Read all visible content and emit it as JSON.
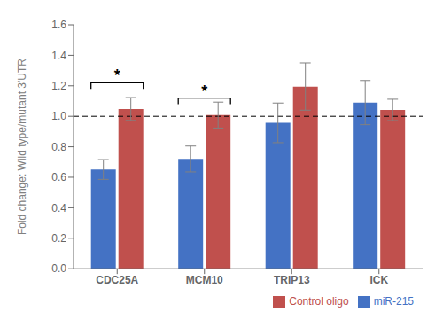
{
  "chart_data": {
    "type": "bar",
    "categories": [
      "CDC25A",
      "MCM10",
      "TRIP13",
      "ICK"
    ],
    "series": [
      {
        "name": "miR-215",
        "color": "#4472C4",
        "values": [
          0.651,
          0.72,
          0.957,
          1.09
        ],
        "errors": [
          0.065,
          0.085,
          0.13,
          0.145
        ]
      },
      {
        "name": "Control oligo",
        "color": "#C0504D",
        "values": [
          1.048,
          1.008,
          1.195,
          1.042
        ],
        "errors": [
          0.075,
          0.085,
          0.155,
          0.07
        ]
      }
    ],
    "ylabel": "Fold change: Wild type/mutant 3'UTR",
    "ylim": [
      0,
      1.6
    ],
    "yticks": [
      {
        "value": 0,
        "label": "0.0"
      },
      0.2,
      0.4,
      0.6,
      0.8,
      {
        "value": 1.0,
        "label": "1.0"
      },
      1.2,
      1.4,
      1.6
    ],
    "hlines": [
      {
        "y": 1.0,
        "line_style": "dashed"
      }
    ],
    "annotations": [
      {
        "category": "CDC25A",
        "text": "*",
        "y": 1.22,
        "drop": 0.04
      },
      {
        "category": "MCM10",
        "text": "*",
        "y": 1.12,
        "drop": 0.04
      }
    ],
    "legend": "lower right",
    "grid": false
  }
}
